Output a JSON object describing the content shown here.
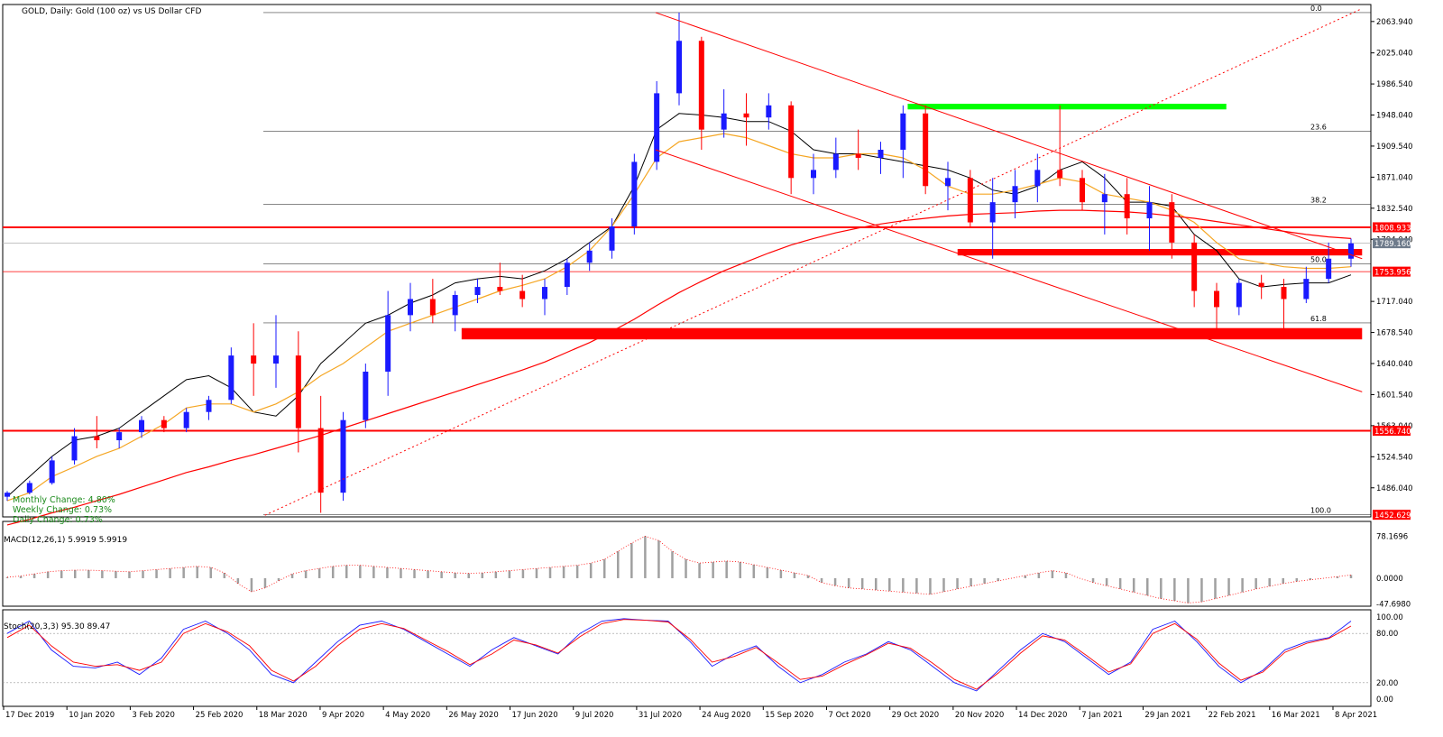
{
  "header": {
    "title": "GOLD, Daily:  Gold (100 oz) vs US Dollar CFD"
  },
  "info_box": {
    "monthly": "Monthly Change: 4.80%",
    "weekly": "Weekly Change: 0.73%",
    "daily": "Daily Change: 0.73%"
  },
  "colors": {
    "up_candle": "#1a1aff",
    "down_candle": "#ff0000",
    "ma_fast": "#000000",
    "ma_mid": "#f5a623",
    "ma_slow": "#ff0000",
    "zone_red": "#ff0000",
    "zone_green": "#00ff00",
    "macd_hist": "#a0a0a0",
    "macd_signal": "#ff0000",
    "stoch_main": "#1a1aff",
    "stoch_signal": "#ff0000",
    "grid": "#d8d8d8",
    "fib": "#000000"
  },
  "chart_data": [
    {
      "type": "candlestick",
      "symbol": "GOLD",
      "timeframe": "Daily",
      "x_start": "2019-12-17",
      "x_end": "2021-04-15",
      "ylim": [
        1450.0,
        2085.0
      ],
      "x_tick_labels": [
        "17 Dec 2019",
        "10 Jan 2020",
        "3 Feb 2020",
        "25 Feb 2020",
        "18 Mar 2020",
        "9 Apr 2020",
        "4 May 2020",
        "26 May 2020",
        "17 Jun 2020",
        "9 Jul 2020",
        "31 Jul 2020",
        "24 Aug 2020",
        "15 Sep 2020",
        "7 Oct 2020",
        "29 Oct 2020",
        "20 Nov 2020",
        "14 Dec 2020",
        "7 Jan 2021",
        "29 Jan 2021",
        "22 Feb 2021",
        "16 Mar 2021",
        "8 Apr 2021"
      ],
      "y_tick_labels": [
        "2063.940",
        "2025.040",
        "1986.540",
        "1948.040",
        "1909.540",
        "1871.040",
        "1832.540",
        "1794.040",
        "1717.040",
        "1678.540",
        "1640.040",
        "1601.540",
        "1563.040",
        "1524.540",
        "1486.040"
      ],
      "price_labels": [
        {
          "text": "1808.933",
          "value": 1808.933,
          "color": "#ff0000"
        },
        {
          "text": "1789.160",
          "value": 1789.16,
          "color": "#6e7b8b"
        },
        {
          "text": "1753.956",
          "value": 1753.956,
          "color": "#ff0000"
        },
        {
          "text": "1556.740",
          "value": 1556.74,
          "color": "#ff0000"
        },
        {
          "text": "1452.629",
          "value": 1452.629,
          "color": "#ff0000"
        }
      ],
      "horizontal_lines": [
        {
          "value": 1808.933,
          "style": "solid-thick"
        },
        {
          "value": 1753.956,
          "style": "thin"
        },
        {
          "value": 1556.74,
          "style": "solid-thick"
        }
      ],
      "fibonacci": {
        "high": 2075.0,
        "low": 1452.629,
        "levels": [
          {
            "label": "0.0",
            "value": 2075.0
          },
          {
            "label": "23.6",
            "value": 1928.1
          },
          {
            "label": "38.2",
            "value": 1837.3
          },
          {
            "label": "50.0",
            "value": 1763.8
          },
          {
            "label": "61.8",
            "value": 1690.4
          },
          {
            "label": "100.0",
            "value": 1452.629
          }
        ]
      },
      "zones": [
        {
          "color": "green",
          "from": "2020-11-06",
          "to": "2021-03-01",
          "low": 1955,
          "high": 1962
        },
        {
          "color": "red",
          "from": "2020-11-24",
          "to": "2021-04-19",
          "low": 1774,
          "high": 1782
        },
        {
          "color": "red",
          "from": "2020-05-29",
          "to": "2021-04-19",
          "low": 1670,
          "high": 1684
        }
      ],
      "trendlines": [
        {
          "style": "solid",
          "from": [
            "2020-08-07",
            2075
          ],
          "to": [
            "2021-04-19",
            1770
          ]
        },
        {
          "style": "solid",
          "from": [
            "2020-08-07",
            1905
          ],
          "to": [
            "2021-04-19",
            1605
          ]
        },
        {
          "style": "dotted",
          "from": [
            "2020-03-19",
            1452
          ],
          "to": [
            "2021-04-19",
            2080
          ]
        }
      ],
      "moving_averages": [
        {
          "color": "black",
          "values": [
            1475,
            1500,
            1525,
            1545,
            1550,
            1560,
            1580,
            1600,
            1620,
            1625,
            1610,
            1580,
            1575,
            1600,
            1640,
            1665,
            1690,
            1700,
            1715,
            1725,
            1740,
            1745,
            1748,
            1745,
            1755,
            1770,
            1790,
            1810,
            1860,
            1930,
            1950,
            1948,
            1945,
            1940,
            1940,
            1928,
            1905,
            1900,
            1900,
            1895,
            1890,
            1885,
            1880,
            1870,
            1855,
            1850,
            1860,
            1880,
            1890,
            1870,
            1840,
            1840,
            1835,
            1800,
            1780,
            1745,
            1735,
            1738,
            1740,
            1740,
            1750
          ]
        },
        {
          "color": "orange",
          "values": [
            1470,
            1480,
            1500,
            1512,
            1525,
            1535,
            1550,
            1565,
            1585,
            1590,
            1590,
            1580,
            1590,
            1605,
            1625,
            1640,
            1660,
            1680,
            1690,
            1700,
            1710,
            1720,
            1730,
            1737,
            1745,
            1760,
            1780,
            1810,
            1850,
            1895,
            1915,
            1920,
            1925,
            1920,
            1910,
            1900,
            1895,
            1895,
            1900,
            1900,
            1895,
            1880,
            1860,
            1850,
            1850,
            1855,
            1862,
            1870,
            1865,
            1850,
            1845,
            1840,
            1830,
            1815,
            1790,
            1770,
            1765,
            1760,
            1758,
            1758,
            1760
          ]
        },
        {
          "color": "red",
          "values": [
            1440,
            1447,
            1455,
            1462,
            1470,
            1478,
            1487,
            1496,
            1505,
            1512,
            1520,
            1527,
            1535,
            1543,
            1551,
            1560,
            1569,
            1578,
            1587,
            1596,
            1605,
            1614,
            1623,
            1632,
            1642,
            1654,
            1666,
            1680,
            1695,
            1712,
            1728,
            1742,
            1755,
            1766,
            1777,
            1787,
            1795,
            1802,
            1808,
            1813,
            1817,
            1820,
            1823,
            1825,
            1826,
            1827,
            1829,
            1830,
            1830,
            1829,
            1828,
            1826,
            1823,
            1820,
            1816,
            1812,
            1808,
            1804,
            1800,
            1797,
            1795
          ]
        }
      ],
      "series": [
        {
          "name": "OHLC (approx)",
          "values": [
            [
              1475,
              1482,
              1470,
              1480
            ],
            [
              1480,
              1495,
              1478,
              1492
            ],
            [
              1492,
              1525,
              1490,
              1520
            ],
            [
              1520,
              1560,
              1515,
              1550
            ],
            [
              1550,
              1575,
              1535,
              1545
            ],
            [
              1545,
              1560,
              1535,
              1555
            ],
            [
              1555,
              1575,
              1548,
              1570
            ],
            [
              1570,
              1575,
              1555,
              1560
            ],
            [
              1560,
              1585,
              1555,
              1580
            ],
            [
              1580,
              1600,
              1570,
              1595
            ],
            [
              1595,
              1660,
              1590,
              1650
            ],
            [
              1650,
              1690,
              1600,
              1640
            ],
            [
              1640,
              1700,
              1610,
              1650
            ],
            [
              1650,
              1680,
              1530,
              1560
            ],
            [
              1560,
              1600,
              1455,
              1480
            ],
            [
              1480,
              1580,
              1470,
              1570
            ],
            [
              1570,
              1640,
              1560,
              1630
            ],
            [
              1630,
              1730,
              1600,
              1700
            ],
            [
              1700,
              1740,
              1680,
              1720
            ],
            [
              1720,
              1745,
              1690,
              1700
            ],
            [
              1700,
              1730,
              1680,
              1725
            ],
            [
              1725,
              1745,
              1715,
              1735
            ],
            [
              1735,
              1765,
              1725,
              1730
            ],
            [
              1730,
              1750,
              1710,
              1720
            ],
            [
              1720,
              1745,
              1700,
              1735
            ],
            [
              1735,
              1770,
              1725,
              1765
            ],
            [
              1765,
              1790,
              1755,
              1780
            ],
            [
              1780,
              1820,
              1770,
              1810
            ],
            [
              1810,
              1900,
              1800,
              1890
            ],
            [
              1890,
              1990,
              1880,
              1975
            ],
            [
              1975,
              2075,
              1960,
              2040
            ],
            [
              2040,
              2045,
              1905,
              1930
            ],
            [
              1930,
              1980,
              1920,
              1950
            ],
            [
              1950,
              1975,
              1910,
              1945
            ],
            [
              1945,
              1975,
              1930,
              1960
            ],
            [
              1960,
              1965,
              1850,
              1870
            ],
            [
              1870,
              1900,
              1850,
              1880
            ],
            [
              1880,
              1920,
              1870,
              1900
            ],
            [
              1900,
              1930,
              1880,
              1895
            ],
            [
              1895,
              1915,
              1875,
              1905
            ],
            [
              1905,
              1960,
              1870,
              1950
            ],
            [
              1950,
              1960,
              1850,
              1860
            ],
            [
              1860,
              1890,
              1830,
              1870
            ],
            [
              1870,
              1880,
              1810,
              1815
            ],
            [
              1815,
              1870,
              1770,
              1840
            ],
            [
              1840,
              1880,
              1820,
              1860
            ],
            [
              1860,
              1900,
              1840,
              1880
            ],
            [
              1880,
              1960,
              1860,
              1870
            ],
            [
              1870,
              1880,
              1830,
              1840
            ],
            [
              1840,
              1875,
              1800,
              1850
            ],
            [
              1850,
              1870,
              1800,
              1820
            ],
            [
              1820,
              1860,
              1780,
              1840
            ],
            [
              1840,
              1850,
              1770,
              1790
            ],
            [
              1790,
              1800,
              1710,
              1730
            ],
            [
              1730,
              1740,
              1680,
              1710
            ],
            [
              1710,
              1745,
              1700,
              1740
            ],
            [
              1740,
              1750,
              1720,
              1735
            ],
            [
              1735,
              1745,
              1680,
              1720
            ],
            [
              1720,
              1760,
              1715,
              1745
            ],
            [
              1745,
              1790,
              1740,
              1770
            ],
            [
              1770,
              1795,
              1760,
              1789
            ]
          ]
        }
      ]
    },
    {
      "type": "histogram",
      "label": "MACD(12,26,1) 5.9919 5.9919",
      "y_tick_labels": [
        "78.1696",
        "0.0000",
        "-47.6980"
      ],
      "ylim": [
        -52,
        82
      ],
      "values": [
        2,
        4,
        8,
        12,
        14,
        15,
        15,
        14,
        13,
        12,
        14,
        16,
        18,
        20,
        22,
        20,
        10,
        -10,
        -25,
        -18,
        -5,
        8,
        14,
        18,
        22,
        24,
        24,
        22,
        20,
        18,
        16,
        14,
        12,
        10,
        9,
        10,
        12,
        14,
        16,
        18,
        20,
        22,
        24,
        28,
        35,
        50,
        65,
        78,
        70,
        50,
        35,
        28,
        30,
        32,
        30,
        25,
        20,
        15,
        10,
        5,
        -8,
        -14,
        -18,
        -20,
        -22,
        -24,
        -26,
        -28,
        -30,
        -25,
        -20,
        -15,
        -10,
        -5,
        0,
        5,
        10,
        14,
        10,
        0,
        -8,
        -14,
        -20,
        -26,
        -32,
        -38,
        -42,
        -46,
        -44,
        -38,
        -32,
        -26,
        -20,
        -15,
        -10,
        -6,
        -3,
        0,
        3,
        6
      ]
    },
    {
      "type": "line",
      "label": "Stoch(20,3,3) 95.30 89.47",
      "y_tick_labels": [
        "100.00",
        "80.00",
        "20.00",
        "0.00"
      ],
      "ylim": [
        0,
        100
      ],
      "series": [
        {
          "values": [
            80,
            95,
            60,
            40,
            38,
            45,
            30,
            50,
            85,
            95,
            80,
            60,
            30,
            20,
            45,
            70,
            90,
            95,
            85,
            70,
            55,
            40,
            60,
            75,
            65,
            55,
            80,
            95,
            98,
            96,
            95,
            70,
            40,
            55,
            65,
            40,
            20,
            30,
            45,
            55,
            70,
            60,
            40,
            20,
            10,
            35,
            60,
            80,
            70,
            50,
            30,
            45,
            85,
            95,
            70,
            40,
            20,
            35,
            60,
            70,
            75,
            95
          ]
        },
        {
          "values": [
            75,
            90,
            65,
            45,
            40,
            42,
            35,
            45,
            80,
            92,
            82,
            65,
            35,
            22,
            40,
            65,
            85,
            92,
            86,
            72,
            58,
            42,
            55,
            72,
            66,
            56,
            76,
            92,
            97,
            96,
            94,
            73,
            45,
            52,
            63,
            44,
            24,
            28,
            42,
            54,
            68,
            62,
            44,
            24,
            12,
            32,
            56,
            77,
            72,
            53,
            33,
            43,
            80,
            92,
            73,
            44,
            23,
            33,
            57,
            68,
            74,
            89
          ]
        }
      ]
    }
  ]
}
